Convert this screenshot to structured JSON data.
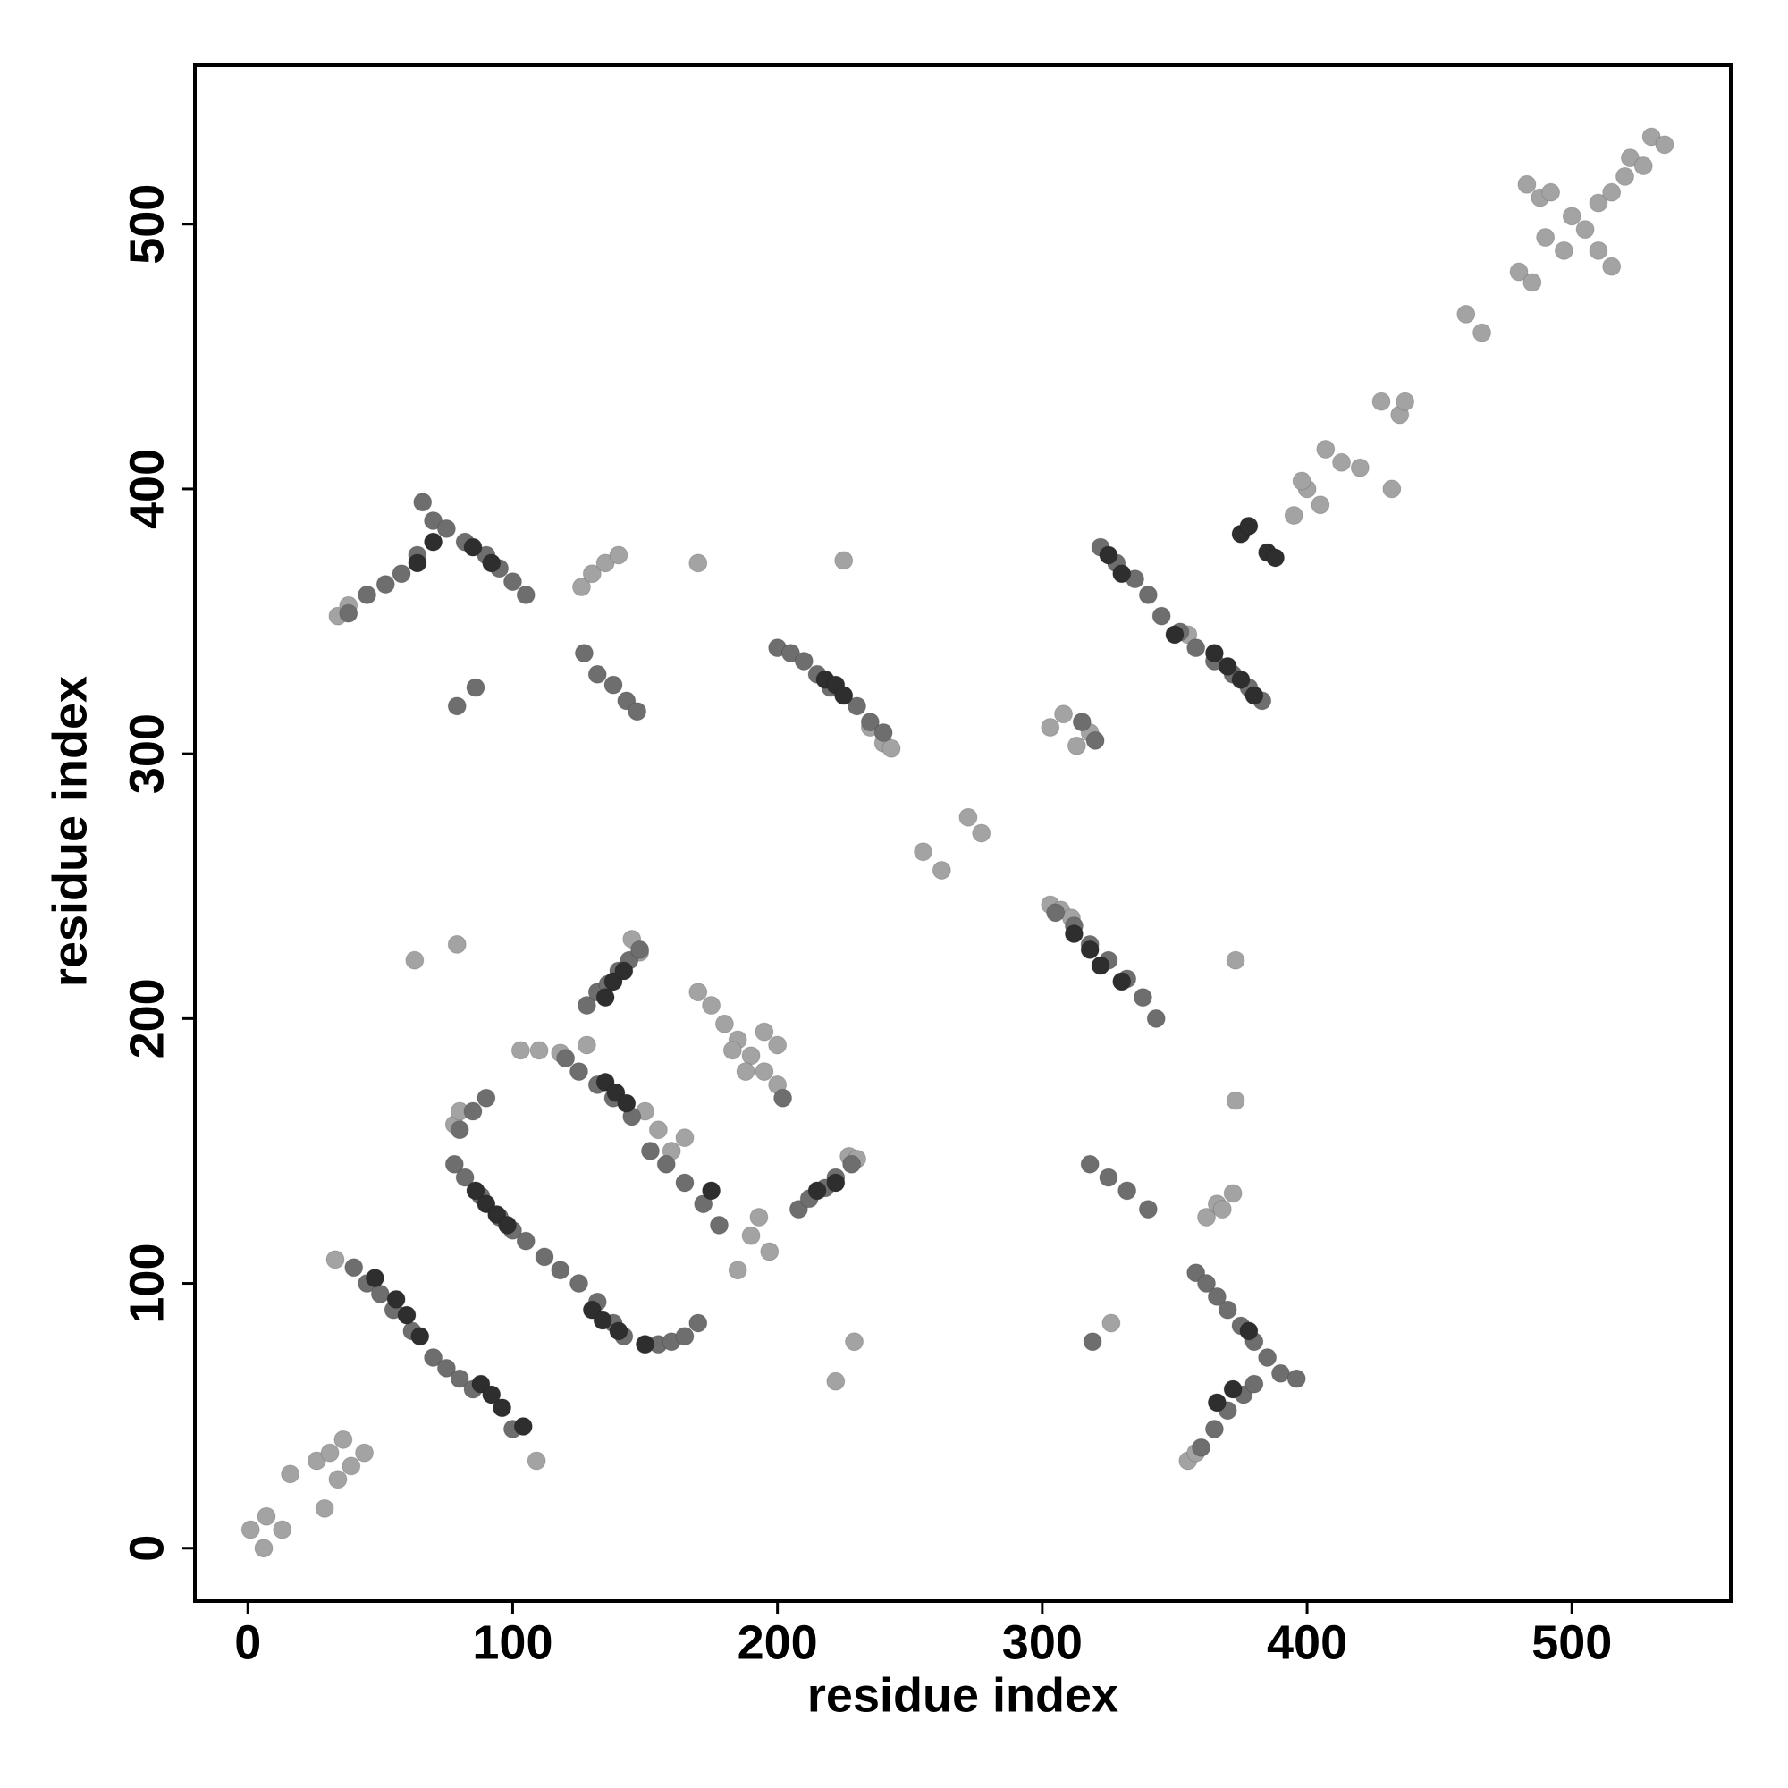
{
  "chart_data": {
    "type": "scatter",
    "x_label": "residue index",
    "y_label": "residue index",
    "xlim": [
      -20,
      560
    ],
    "ylim": [
      -20,
      560
    ],
    "xticks": [
      0,
      100,
      200,
      300,
      400,
      500
    ],
    "yticks": [
      0,
      100,
      200,
      300,
      400,
      500
    ],
    "series": [
      {
        "color": "#a3a3a3",
        "x": [
          1,
          6,
          7,
          13,
          16,
          26,
          29,
          31,
          34,
          36,
          39,
          44,
          255,
          262,
          272,
          277,
          303,
          308,
          313,
          318,
          395,
          400,
          405,
          398,
          407,
          413,
          420,
          428,
          435,
          432,
          437,
          460,
          466,
          480,
          485,
          490,
          497,
          500,
          505,
          510,
          515,
          520,
          522,
          527,
          530,
          535,
          483,
          488,
          510,
          515,
          492,
          63,
          79,
          170,
          225,
          222,
          229,
          373,
          373,
          326,
          34,
          38,
          103,
          110,
          118,
          128,
          126,
          130,
          135,
          140,
          303,
          307,
          311,
          170,
          175,
          180,
          185,
          190,
          195,
          200,
          183,
          188,
          195,
          200,
          150,
          155,
          160,
          165,
          185,
          190,
          193,
          197,
          355,
          358,
          362,
          240,
          243,
          235,
          109,
          33,
          227,
          230,
          148,
          145,
          78,
          80,
          355,
          366,
          368,
          372
        ],
        "y": [
          7,
          0,
          12,
          7,
          28,
          33,
          15,
          36,
          26,
          41,
          31,
          36,
          263,
          256,
          276,
          270,
          310,
          315,
          303,
          308,
          390,
          400,
          394,
          403,
          415,
          410,
          408,
          433,
          428,
          400,
          433,
          466,
          459,
          482,
          478,
          495,
          490,
          503,
          498,
          508,
          512,
          518,
          525,
          522,
          533,
          530,
          515,
          510,
          490,
          484,
          512,
          222,
          228,
          372,
          373,
          63,
          78,
          222,
          169,
          85,
          352,
          356,
          188,
          188,
          187,
          190,
          363,
          368,
          372,
          375,
          243,
          241,
          238,
          210,
          205,
          198,
          192,
          186,
          180,
          175,
          188,
          180,
          195,
          190,
          165,
          158,
          150,
          155,
          105,
          118,
          125,
          112,
          33,
          36,
          125,
          304,
          302,
          310,
          33,
          109,
          148,
          147,
          225,
          230,
          160,
          165,
          345,
          130,
          128,
          134
        ]
      },
      {
        "color": "#6e6e6e",
        "x": [
          40,
          45,
          50,
          55,
          62,
          70,
          75,
          80,
          85,
          100,
          78,
          82,
          88,
          95,
          100,
          105,
          112,
          118,
          125,
          132,
          138,
          142,
          150,
          155,
          160,
          165,
          170,
          80,
          85,
          90,
          120,
          125,
          132,
          138,
          145,
          152,
          158,
          165,
          172,
          178,
          128,
          132,
          136,
          140,
          144,
          148,
          200,
          205,
          210,
          215,
          220,
          225,
          230,
          235,
          240,
          208,
          212,
          218,
          222,
          228,
          38,
          45,
          52,
          58,
          64,
          66,
          70,
          75,
          82,
          90,
          95,
          100,
          105,
          127,
          132,
          138,
          143,
          147,
          322,
          328,
          335,
          340,
          345,
          352,
          358,
          365,
          372,
          378,
          383,
          305,
          312,
          318,
          325,
          332,
          338,
          343,
          318,
          325,
          332,
          340,
          358,
          362,
          366,
          370,
          375,
          380,
          385,
          390,
          360,
          365,
          370,
          376,
          380,
          79,
          86,
          319,
          396,
          315,
          320,
          202
        ],
        "y": [
          106,
          100,
          96,
          90,
          82,
          72,
          68,
          64,
          60,
          45,
          145,
          140,
          133,
          125,
          120,
          116,
          110,
          105,
          100,
          93,
          85,
          80,
          77,
          77,
          78,
          80,
          85,
          158,
          165,
          170,
          185,
          180,
          175,
          170,
          163,
          150,
          145,
          138,
          130,
          122,
          205,
          210,
          213,
          218,
          222,
          226,
          340,
          338,
          335,
          330,
          325,
          322,
          318,
          312,
          308,
          128,
          132,
          136,
          140,
          145,
          353,
          360,
          364,
          368,
          375,
          395,
          388,
          385,
          380,
          375,
          370,
          365,
          360,
          338,
          330,
          326,
          320,
          316,
          378,
          372,
          366,
          360,
          352,
          346,
          340,
          335,
          330,
          325,
          320,
          240,
          235,
          228,
          222,
          215,
          208,
          200,
          145,
          140,
          135,
          128,
          104,
          100,
          95,
          90,
          84,
          78,
          72,
          66,
          38,
          45,
          52,
          58,
          62,
          318,
          325,
          78,
          64,
          312,
          305,
          170
        ]
      },
      {
        "color": "#2e2e2e",
        "x": [
          48,
          56,
          60,
          65,
          88,
          92,
          96,
          104,
          86,
          90,
          94,
          98,
          130,
          134,
          140,
          135,
          139,
          143,
          150,
          175,
          218,
          222,
          225,
          215,
          222,
          135,
          138,
          142,
          64,
          70,
          85,
          92,
          325,
          330,
          350,
          365,
          370,
          375,
          380,
          312,
          318,
          322,
          330,
          366,
          372,
          378,
          375,
          378,
          385,
          388
        ],
        "y": [
          102,
          94,
          88,
          80,
          62,
          58,
          53,
          46,
          135,
          130,
          126,
          122,
          90,
          86,
          82,
          176,
          172,
          168,
          77,
          135,
          328,
          326,
          322,
          135,
          138,
          208,
          214,
          218,
          372,
          380,
          378,
          372,
          375,
          368,
          345,
          338,
          333,
          328,
          322,
          232,
          226,
          220,
          214,
          55,
          60,
          82,
          383,
          386,
          376,
          374
        ]
      }
    ]
  }
}
